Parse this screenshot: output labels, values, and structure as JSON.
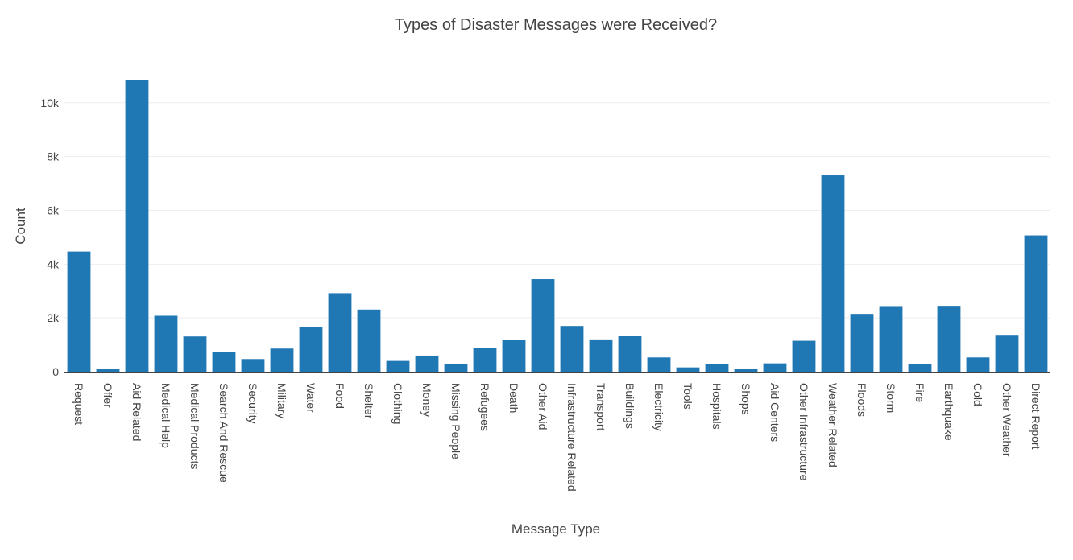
{
  "chart_data": {
    "type": "bar",
    "title": "Types of Disaster Messages were Received?",
    "xlabel": "Message Type",
    "ylabel": "Count",
    "ylim": [
      0,
      11400
    ],
    "yticks": [
      0,
      2000,
      4000,
      6000,
      8000,
      10000
    ],
    "ytick_labels": [
      "0",
      "2k",
      "4k",
      "6k",
      "8k",
      "10k"
    ],
    "grid": true,
    "bar_color": "#1f77b4",
    "categories": [
      "Request",
      "Offer",
      "Aid Related",
      "Medical Help",
      "Medical Products",
      "Search And Rescue",
      "Security",
      "Military",
      "Water",
      "Food",
      "Shelter",
      "Clothing",
      "Money",
      "Missing People",
      "Refugees",
      "Death",
      "Other Aid",
      "Infrastructure Related",
      "Transport",
      "Buildings",
      "Electricity",
      "Tools",
      "Hospitals",
      "Shops",
      "Aid Centers",
      "Other Infrastructure",
      "Weather Related",
      "Floods",
      "Storm",
      "Fire",
      "Earthquake",
      "Cold",
      "Other Weather",
      "Direct Report"
    ],
    "values": [
      4470,
      120,
      10860,
      2080,
      1310,
      720,
      470,
      860,
      1670,
      2920,
      2310,
      400,
      600,
      300,
      870,
      1190,
      3440,
      1700,
      1200,
      1330,
      530,
      160,
      280,
      120,
      310,
      1150,
      7300,
      2150,
      2440,
      280,
      2450,
      530,
      1370,
      5070
    ]
  }
}
